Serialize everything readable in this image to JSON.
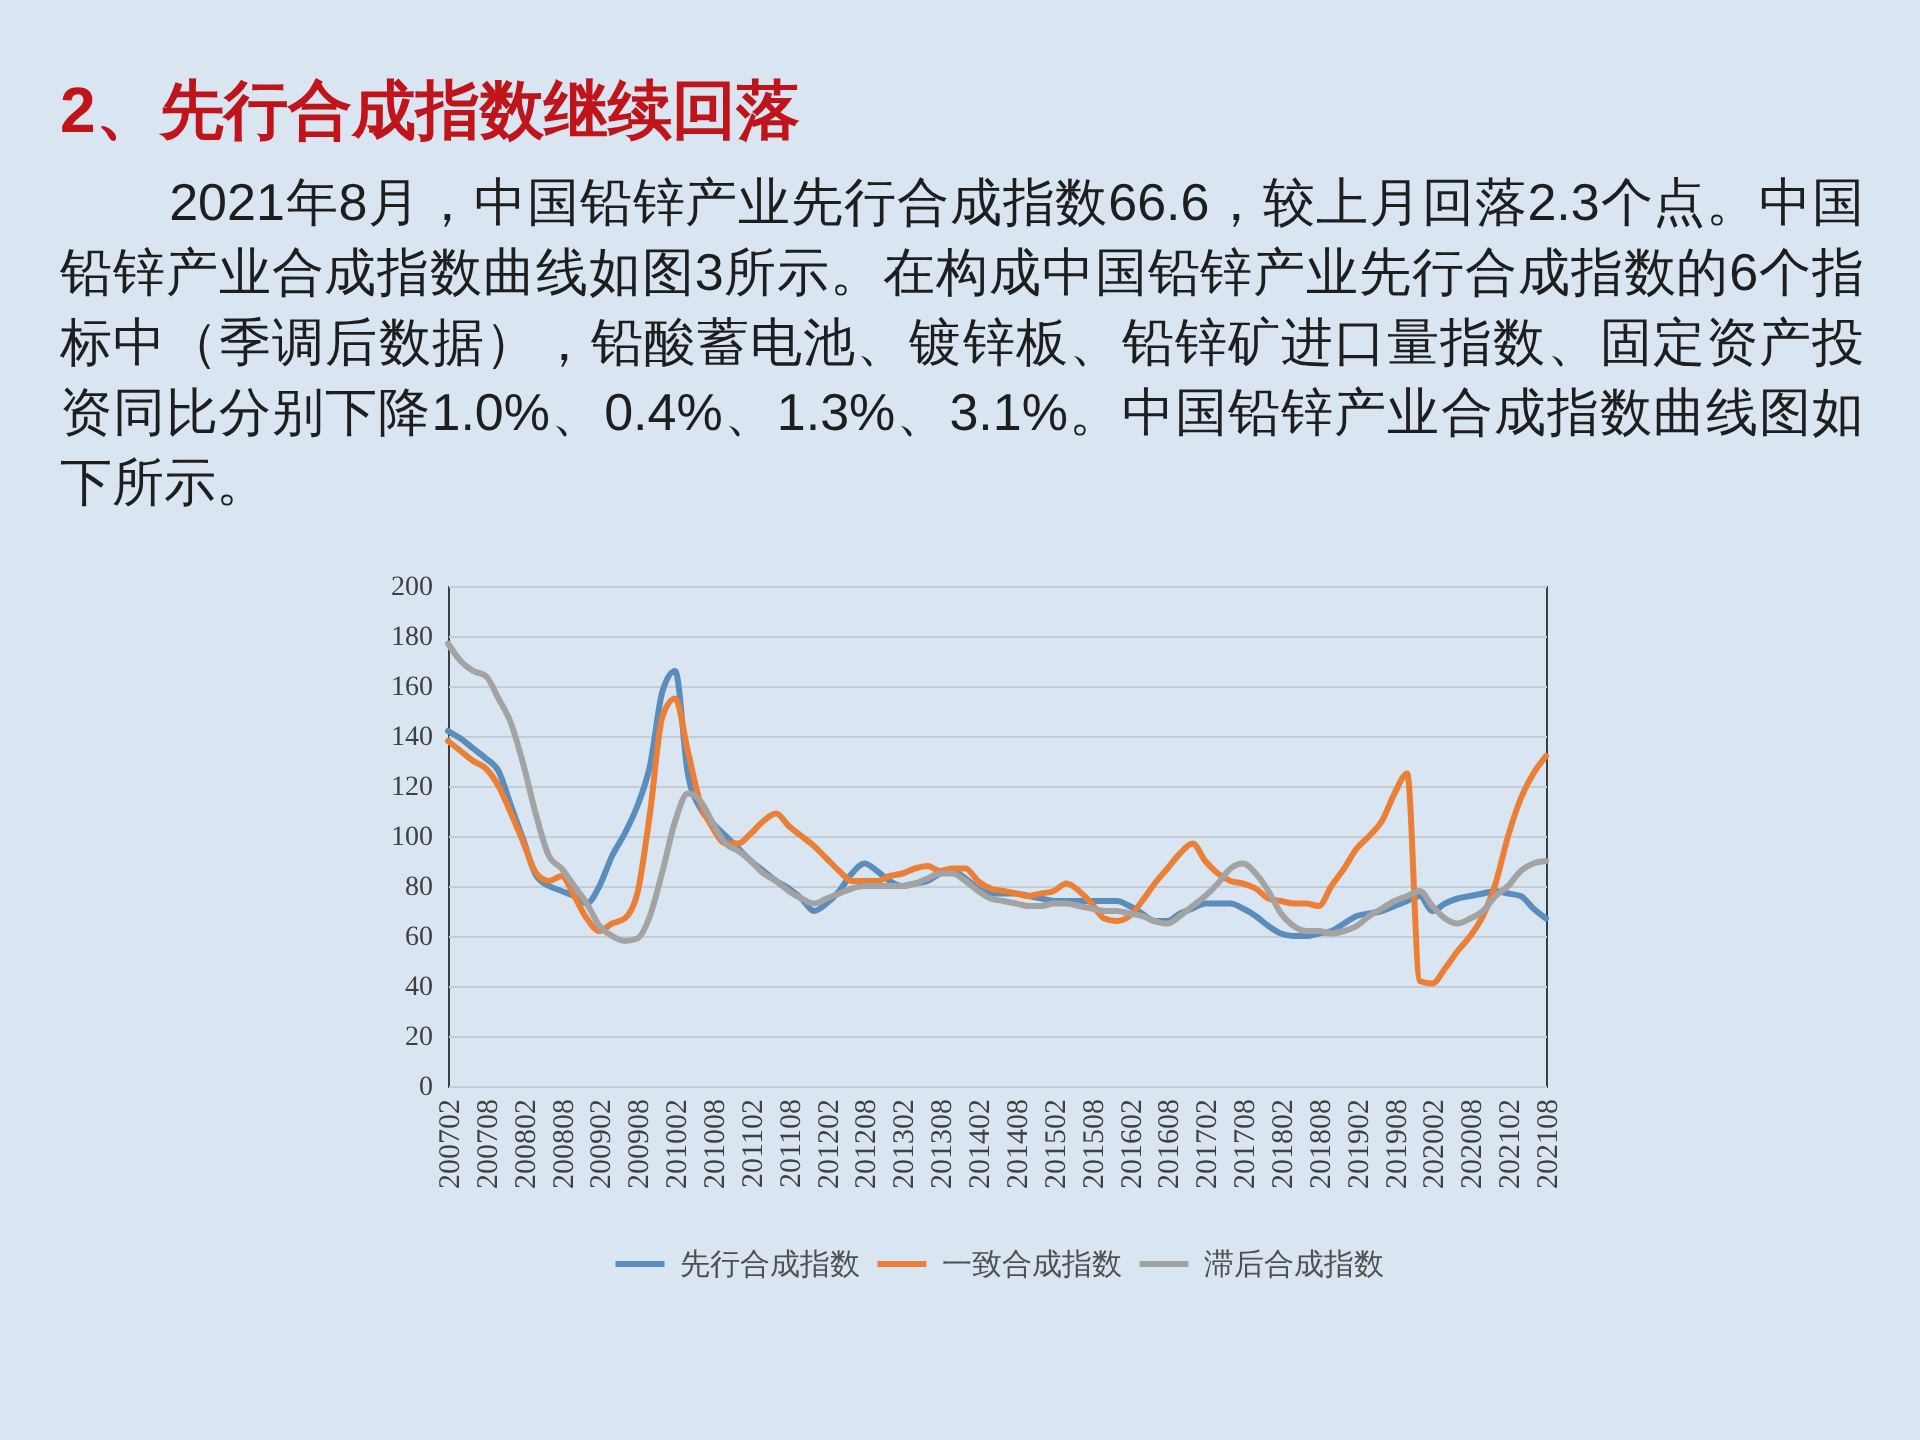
{
  "chart_data": {
    "type": "line",
    "title": "2、先行合成指数继续回落",
    "subtitle": "2021年8月，中国铅锌产业先行合成指数66.6，较上月回落2.3个点。中国铅锌产业合成指数曲线如图3所示。在构成中国铅锌产业先行合成指数的6个指标中（季调后数据），铅酸蓄电池、镀锌板、铅锌矿进口量指数、固定资产投资同比分别下降1.0%、0.4%、1.3%、3.1%。中国铅锌产业合成指数曲线图如下所示。",
    "categories": [
      "200702",
      null,
      null,
      "200708",
      null,
      null,
      "200802",
      null,
      null,
      "200808",
      null,
      null,
      "200902",
      null,
      null,
      "200908",
      null,
      null,
      "201002",
      null,
      null,
      "201008",
      null,
      null,
      "201102",
      null,
      null,
      "201108",
      null,
      null,
      "201202",
      null,
      null,
      "201208",
      null,
      null,
      "201302",
      null,
      null,
      "201308",
      null,
      null,
      "201402",
      null,
      null,
      "201408",
      null,
      null,
      "201502",
      null,
      null,
      "201508",
      null,
      null,
      "201602",
      null,
      null,
      "201608",
      null,
      null,
      "201702",
      null,
      null,
      "201708",
      null,
      null,
      "201802",
      null,
      null,
      "201808",
      null,
      null,
      "201902",
      null,
      null,
      "201908",
      null,
      null,
      "202002",
      null,
      null,
      "202008",
      null,
      null,
      "202102",
      null,
      null,
      "202108"
    ],
    "series": [
      {
        "name": "先行合成指数",
        "color": "#5a8cbc",
        "values": [
          142,
          139,
          135,
          131,
          126,
          112,
          98,
          84,
          80,
          78,
          76,
          73,
          80,
          92,
          101,
          112,
          128,
          158,
          166,
          125,
          111,
          105,
          100,
          95,
          90,
          86,
          82,
          79,
          75,
          70,
          73,
          78,
          85,
          89,
          86,
          82,
          80,
          81,
          82,
          85,
          86,
          83,
          79,
          77,
          77,
          77,
          76,
          75,
          74,
          74,
          74,
          74,
          74,
          74,
          72,
          69,
          66,
          66,
          69,
          71,
          73,
          73,
          73,
          71,
          68,
          64,
          61,
          60,
          60,
          61,
          62,
          65,
          68,
          69,
          70,
          72,
          74,
          76,
          70,
          73,
          75,
          76,
          77,
          78,
          77,
          76,
          71,
          67
        ]
      },
      {
        "name": "一致合成指数",
        "color": "#ea7f35",
        "values": [
          138,
          134,
          130,
          127,
          120,
          109,
          97,
          85,
          82,
          84,
          76,
          67,
          62,
          65,
          67,
          77,
          109,
          148,
          155,
          134,
          113,
          103,
          97,
          97,
          101,
          106,
          109,
          104,
          100,
          96,
          91,
          86,
          82,
          82,
          82,
          84,
          85,
          87,
          88,
          86,
          87,
          87,
          82,
          79,
          78,
          77,
          76,
          77,
          78,
          81,
          78,
          73,
          67,
          66,
          68,
          74,
          81,
          87,
          93,
          97,
          90,
          85,
          82,
          81,
          79,
          75,
          74,
          73,
          73,
          72,
          80,
          87,
          95,
          100,
          106,
          117,
          125,
          42,
          41,
          47,
          54,
          60,
          68,
          81,
          100,
          115,
          125,
          132
        ]
      },
      {
        "name": "滞后合成指数",
        "color": "#a3a3a3",
        "values": [
          177,
          170,
          166,
          164,
          155,
          145,
          128,
          108,
          92,
          87,
          80,
          73,
          64,
          60,
          58,
          59,
          68,
          86,
          106,
          117,
          114,
          105,
          97,
          94,
          90,
          85,
          82,
          78,
          75,
          73,
          75,
          77,
          79,
          80,
          80,
          80,
          80,
          81,
          83,
          85,
          85,
          82,
          78,
          75,
          74,
          73,
          72,
          72,
          73,
          73,
          72,
          71,
          70,
          70,
          69,
          68,
          66,
          65,
          68,
          72,
          76,
          81,
          87,
          89,
          85,
          78,
          69,
          64,
          62,
          62,
          61,
          62,
          64,
          68,
          71,
          74,
          76,
          78,
          72,
          67,
          65,
          67,
          70,
          76,
          80,
          86,
          89,
          90
        ]
      }
    ],
    "ylim": [
      0,
      200
    ],
    "yticks": [
      0,
      20,
      40,
      60,
      80,
      100,
      120,
      140,
      160,
      180,
      200
    ],
    "grid": "y",
    "legend": "bottom"
  }
}
